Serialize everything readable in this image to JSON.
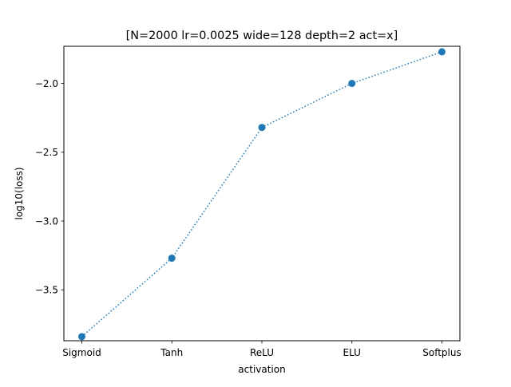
{
  "chart_data": {
    "type": "line",
    "title": "[N=2000 lr=0.0025 wide=128 depth=2 act=x]",
    "xlabel": "activation",
    "ylabel": "log10(loss)",
    "categories": [
      "Sigmoid",
      "Tanh",
      "ReLU",
      "ELU",
      "Softplus"
    ],
    "series": [
      {
        "values": [
          -3.84,
          -3.27,
          -2.32,
          -2.0,
          -1.77
        ]
      }
    ],
    "ylim": [
      -3.87,
      -1.73
    ],
    "yticks": [
      -3.5,
      -3.0,
      -2.5,
      -2.0
    ],
    "ytick_labels": [
      "−3.5",
      "−3.0",
      "−2.5",
      "−2.0"
    ],
    "line_style": "dotted",
    "marker": "circle",
    "colors": {
      "series": "#1f77b4",
      "axes": "#000000",
      "background": "#ffffff"
    },
    "grid": false,
    "legend": "none"
  }
}
